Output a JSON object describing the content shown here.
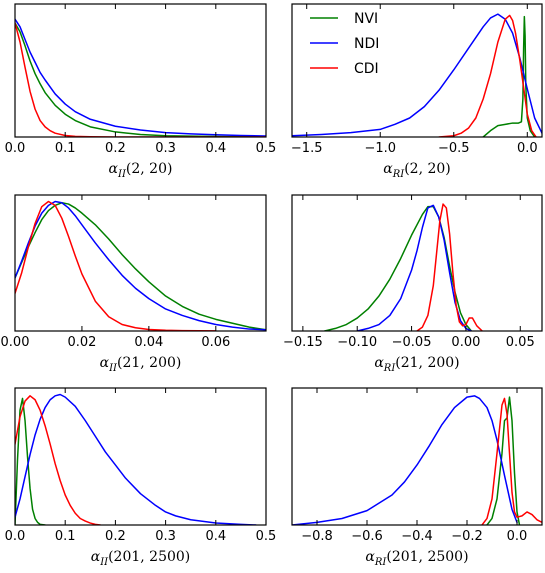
{
  "chart_data": [
    {
      "type": "line",
      "xlabel": "α_II(2, 20)",
      "xlim": [
        0,
        0.5
      ],
      "ylim": [
        0,
        1.05
      ],
      "xticks": [
        0.0,
        0.1,
        0.2,
        0.3,
        0.4,
        0.5
      ],
      "xtick_labels": [
        "0.0",
        "0.1",
        "0.2",
        "0.3",
        "0.4",
        "0.5"
      ],
      "series": [
        {
          "name": "NVI",
          "color": "#008000",
          "x": [
            0,
            0.01,
            0.02,
            0.03,
            0.04,
            0.05,
            0.06,
            0.08,
            0.1,
            0.12,
            0.15,
            0.2,
            0.25,
            0.3,
            0.4,
            0.5
          ],
          "y": [
            0.9,
            0.83,
            0.72,
            0.6,
            0.5,
            0.42,
            0.35,
            0.25,
            0.18,
            0.13,
            0.08,
            0.04,
            0.02,
            0.01,
            0.004,
            0.001
          ]
        },
        {
          "name": "NDI",
          "color": "#0000ff",
          "x": [
            0,
            0.01,
            0.02,
            0.03,
            0.04,
            0.05,
            0.06,
            0.08,
            0.1,
            0.12,
            0.15,
            0.2,
            0.25,
            0.3,
            0.35,
            0.4,
            0.45,
            0.5
          ],
          "y": [
            0.93,
            0.87,
            0.77,
            0.67,
            0.59,
            0.51,
            0.45,
            0.34,
            0.26,
            0.2,
            0.14,
            0.085,
            0.055,
            0.035,
            0.025,
            0.018,
            0.012,
            0.008
          ]
        },
        {
          "name": "CDI",
          "color": "#ff0000",
          "x": [
            0,
            0.01,
            0.02,
            0.03,
            0.04,
            0.05,
            0.06,
            0.07,
            0.08,
            0.1,
            0.12,
            0.15,
            0.2,
            0.3,
            0.5
          ],
          "y": [
            0.9,
            0.75,
            0.55,
            0.36,
            0.22,
            0.13,
            0.08,
            0.05,
            0.03,
            0.012,
            0.005,
            0.002,
            0.0005,
            0.0002,
            0.0001
          ]
        }
      ]
    },
    {
      "type": "line",
      "xlabel": "α_RI(2, 20)",
      "xlim": [
        -1.6,
        0.1
      ],
      "ylim": [
        0,
        1.05
      ],
      "xticks": [
        -1.5,
        -1.0,
        -0.5,
        0.0
      ],
      "xtick_labels": [
        "−1.5",
        "−1.0",
        "−0.5",
        "0.0"
      ],
      "legend": {
        "position": "top-left",
        "entries": [
          "NVI",
          "NDI",
          "CDI"
        ]
      },
      "series": [
        {
          "name": "NVI",
          "color": "#008000",
          "x": [
            -0.3,
            -0.25,
            -0.2,
            -0.15,
            -0.1,
            -0.06,
            -0.04,
            -0.03,
            -0.025,
            -0.02,
            -0.015,
            -0.01,
            0,
            0.02,
            0.05
          ],
          "y": [
            0.0,
            0.05,
            0.09,
            0.1,
            0.11,
            0.11,
            0.12,
            0.3,
            0.7,
            0.95,
            0.8,
            0.4,
            0.15,
            0.05,
            0.0
          ]
        },
        {
          "name": "NDI",
          "color": "#0000ff",
          "x": [
            -1.6,
            -1.4,
            -1.2,
            -1.0,
            -0.9,
            -0.8,
            -0.7,
            -0.6,
            -0.5,
            -0.4,
            -0.3,
            -0.25,
            -0.2,
            -0.15,
            -0.1,
            -0.05,
            0,
            0.05,
            0.1
          ],
          "y": [
            0.01,
            0.02,
            0.035,
            0.06,
            0.1,
            0.15,
            0.24,
            0.37,
            0.53,
            0.7,
            0.87,
            0.94,
            0.97,
            0.93,
            0.82,
            0.62,
            0.38,
            0.15,
            0.03
          ]
        },
        {
          "name": "CDI",
          "color": "#ff0000",
          "x": [
            -0.6,
            -0.5,
            -0.45,
            -0.4,
            -0.35,
            -0.3,
            -0.25,
            -0.2,
            -0.15,
            -0.12,
            -0.1,
            -0.08,
            -0.05,
            -0.02,
            0,
            0.03,
            0.06
          ],
          "y": [
            0.0,
            0.01,
            0.03,
            0.07,
            0.15,
            0.3,
            0.5,
            0.75,
            0.93,
            0.96,
            0.92,
            0.82,
            0.6,
            0.35,
            0.18,
            0.05,
            0.0
          ]
        }
      ]
    },
    {
      "type": "line",
      "xlabel": "α_II(21, 200)",
      "xlim": [
        0,
        0.075
      ],
      "ylim": [
        0,
        1.05
      ],
      "xticks": [
        0.0,
        0.02,
        0.04,
        0.06
      ],
      "xtick_labels": [
        "0.00",
        "0.02",
        "0.04",
        "0.06"
      ],
      "series": [
        {
          "name": "NVI",
          "color": "#008000",
          "x": [
            0,
            0.002,
            0.004,
            0.006,
            0.008,
            0.01,
            0.012,
            0.014,
            0.016,
            0.018,
            0.02,
            0.024,
            0.028,
            0.032,
            0.036,
            0.04,
            0.045,
            0.05,
            0.055,
            0.06,
            0.065,
            0.07,
            0.075
          ],
          "y": [
            0.41,
            0.53,
            0.65,
            0.76,
            0.86,
            0.93,
            0.97,
            0.99,
            0.98,
            0.95,
            0.91,
            0.82,
            0.71,
            0.59,
            0.48,
            0.38,
            0.27,
            0.19,
            0.13,
            0.09,
            0.06,
            0.03,
            0.01
          ]
        },
        {
          "name": "NDI",
          "color": "#0000ff",
          "x": [
            0,
            0.002,
            0.004,
            0.006,
            0.008,
            0.01,
            0.012,
            0.014,
            0.016,
            0.018,
            0.02,
            0.024,
            0.028,
            0.032,
            0.036,
            0.04,
            0.045,
            0.05,
            0.055,
            0.06,
            0.065,
            0.07,
            0.075
          ],
          "y": [
            0.41,
            0.54,
            0.68,
            0.81,
            0.91,
            0.97,
            1.0,
            0.99,
            0.95,
            0.89,
            0.82,
            0.68,
            0.55,
            0.43,
            0.33,
            0.25,
            0.17,
            0.12,
            0.08,
            0.05,
            0.03,
            0.015,
            0.01
          ]
        },
        {
          "name": "CDI",
          "color": "#ff0000",
          "x": [
            0,
            0.002,
            0.004,
            0.006,
            0.008,
            0.01,
            0.012,
            0.014,
            0.016,
            0.018,
            0.02,
            0.024,
            0.028,
            0.032,
            0.036,
            0.04,
            0.045,
            0.05,
            0.055,
            0.06
          ],
          "y": [
            0.29,
            0.45,
            0.65,
            0.83,
            0.96,
            1.0,
            0.97,
            0.87,
            0.73,
            0.58,
            0.44,
            0.23,
            0.11,
            0.05,
            0.025,
            0.012,
            0.006,
            0.003,
            0.002,
            0.001
          ]
        }
      ]
    },
    {
      "type": "line",
      "xlabel": "α_RI(21, 200)",
      "xlim": [
        -0.16,
        0.07
      ],
      "ylim": [
        0,
        1.05
      ],
      "xticks": [
        -0.15,
        -0.1,
        -0.05,
        0.0,
        0.05
      ],
      "xtick_labels": [
        "−0.15",
        "−0.10",
        "−0.05",
        "0.00",
        "0.05"
      ],
      "series": [
        {
          "name": "NVI",
          "color": "#008000",
          "x": [
            -0.13,
            -0.12,
            -0.11,
            -0.1,
            -0.09,
            -0.08,
            -0.07,
            -0.06,
            -0.05,
            -0.04,
            -0.035,
            -0.03,
            -0.025,
            -0.02,
            -0.015,
            -0.01,
            -0.005,
            0,
            0.005
          ],
          "y": [
            0.0,
            0.02,
            0.05,
            0.1,
            0.17,
            0.27,
            0.4,
            0.56,
            0.74,
            0.9,
            0.96,
            0.96,
            0.88,
            0.72,
            0.5,
            0.3,
            0.14,
            0.05,
            0.0
          ]
        },
        {
          "name": "NDI",
          "color": "#0000ff",
          "x": [
            -0.1,
            -0.09,
            -0.08,
            -0.07,
            -0.06,
            -0.05,
            -0.045,
            -0.04,
            -0.035,
            -0.03,
            -0.025,
            -0.02,
            -0.015,
            -0.01,
            -0.005,
            0,
            0.005
          ],
          "y": [
            0.0,
            0.02,
            0.05,
            0.12,
            0.25,
            0.47,
            0.62,
            0.8,
            0.95,
            0.97,
            0.88,
            0.7,
            0.45,
            0.22,
            0.08,
            0.02,
            0.0
          ]
        },
        {
          "name": "CDI",
          "color": "#ff0000",
          "x": [
            -0.045,
            -0.04,
            -0.035,
            -0.03,
            -0.027,
            -0.024,
            -0.021,
            -0.018,
            -0.015,
            -0.012,
            -0.009,
            -0.006,
            -0.003,
            0,
            0.003,
            0.006,
            0.01,
            0.015
          ],
          "y": [
            0.0,
            0.03,
            0.12,
            0.35,
            0.6,
            0.85,
            0.98,
            0.95,
            0.75,
            0.45,
            0.2,
            0.07,
            0.04,
            0.05,
            0.1,
            0.1,
            0.04,
            0.0
          ]
        }
      ]
    },
    {
      "type": "line",
      "xlabel": "α_II(201, 2500)",
      "xlim": [
        0,
        0.5
      ],
      "ylim": [
        0,
        1.05
      ],
      "xticks": [
        0.0,
        0.1,
        0.2,
        0.3,
        0.4,
        0.5
      ],
      "xtick_labels": [
        "0.0",
        "0.1",
        "0.2",
        "0.3",
        "0.4",
        "0.5"
      ],
      "series": [
        {
          "name": "NVI",
          "color": "#008000",
          "x": [
            0,
            0.005,
            0.01,
            0.015,
            0.02,
            0.025,
            0.03,
            0.035,
            0.04,
            0.045,
            0.05,
            0.06
          ],
          "y": [
            0.0,
            0.5,
            0.88,
            0.97,
            0.8,
            0.52,
            0.28,
            0.12,
            0.05,
            0.02,
            0.005,
            0.0
          ]
        },
        {
          "name": "NDI",
          "color": "#0000ff",
          "x": [
            0,
            0.01,
            0.02,
            0.03,
            0.04,
            0.05,
            0.06,
            0.07,
            0.08,
            0.09,
            0.1,
            0.12,
            0.14,
            0.16,
            0.18,
            0.2,
            0.22,
            0.25,
            0.28,
            0.3,
            0.32,
            0.35,
            0.4,
            0.45,
            0.48
          ],
          "y": [
            0.06,
            0.2,
            0.37,
            0.54,
            0.69,
            0.81,
            0.9,
            0.96,
            0.99,
            1.0,
            0.98,
            0.91,
            0.8,
            0.68,
            0.56,
            0.46,
            0.36,
            0.24,
            0.15,
            0.1,
            0.07,
            0.04,
            0.015,
            0.005,
            0.0
          ]
        },
        {
          "name": "CDI",
          "color": "#ff0000",
          "x": [
            0,
            0.01,
            0.02,
            0.03,
            0.04,
            0.05,
            0.06,
            0.07,
            0.08,
            0.09,
            0.1,
            0.11,
            0.12,
            0.13,
            0.14,
            0.15,
            0.16,
            0.17
          ],
          "y": [
            0.62,
            0.83,
            0.95,
            0.99,
            0.96,
            0.88,
            0.76,
            0.62,
            0.47,
            0.34,
            0.23,
            0.15,
            0.09,
            0.05,
            0.03,
            0.015,
            0.005,
            0.0
          ]
        }
      ]
    },
    {
      "type": "line",
      "xlabel": "α_RI(201, 2500)",
      "xlim": [
        -0.9,
        0.1
      ],
      "ylim": [
        0,
        1.05
      ],
      "xticks": [
        -0.8,
        -0.6,
        -0.4,
        -0.2,
        0.0
      ],
      "xtick_labels": [
        "−0.8",
        "−0.6",
        "−0.4",
        "−0.2",
        "0.0"
      ],
      "series": [
        {
          "name": "NVI",
          "color": "#008000",
          "x": [
            -0.12,
            -0.1,
            -0.08,
            -0.06,
            -0.05,
            -0.04,
            -0.03,
            -0.02,
            -0.01,
            0,
            0.01
          ],
          "y": [
            0.0,
            0.05,
            0.2,
            0.55,
            0.8,
            0.82,
            0.98,
            0.8,
            0.4,
            0.1,
            0.0
          ]
        },
        {
          "name": "NDI",
          "color": "#0000ff",
          "x": [
            -0.9,
            -0.8,
            -0.7,
            -0.6,
            -0.5,
            -0.45,
            -0.4,
            -0.35,
            -0.3,
            -0.25,
            -0.2,
            -0.17,
            -0.15,
            -0.12,
            -0.1,
            -0.08,
            -0.05,
            -0.02,
            0
          ],
          "y": [
            0.0,
            0.02,
            0.05,
            0.11,
            0.23,
            0.33,
            0.46,
            0.61,
            0.77,
            0.9,
            0.98,
            0.99,
            0.97,
            0.9,
            0.8,
            0.65,
            0.38,
            0.12,
            0.02
          ]
        },
        {
          "name": "CDI",
          "color": "#ff0000",
          "x": [
            -0.14,
            -0.12,
            -0.1,
            -0.08,
            -0.06,
            -0.05,
            -0.04,
            -0.03,
            -0.02,
            -0.01,
            0,
            0.02,
            0.04,
            0.06,
            0.08,
            0.1
          ],
          "y": [
            0.0,
            0.05,
            0.2,
            0.55,
            0.92,
            0.97,
            0.85,
            0.55,
            0.25,
            0.1,
            0.06,
            0.07,
            0.1,
            0.08,
            0.04,
            0.02
          ]
        }
      ]
    }
  ]
}
